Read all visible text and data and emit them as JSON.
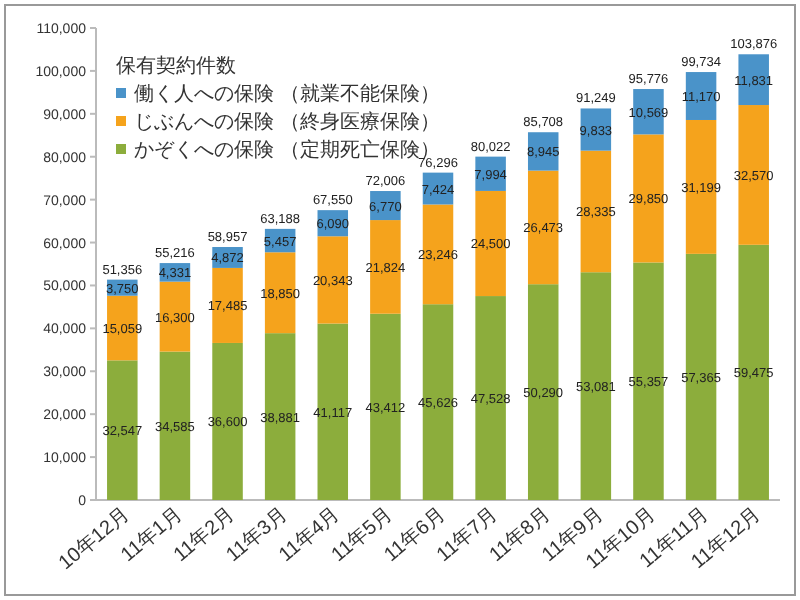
{
  "chart_data": {
    "type": "bar",
    "stacked": true,
    "legend_title": "保有契約件数",
    "legend": "top left",
    "categories": [
      "10年12月",
      "11年1月",
      "11年2月",
      "11年3月",
      "11年4月",
      "11年5月",
      "11年6月",
      "11年7月",
      "11年8月",
      "11年9月",
      "11年10月",
      "11年11月",
      "11年12月"
    ],
    "ylim": [
      0,
      110000
    ],
    "yticks": [
      {
        "value": 0,
        "label": "0"
      },
      {
        "value": 10000,
        "label": "10,000"
      },
      {
        "value": 20000,
        "label": "20,000"
      },
      {
        "value": 30000,
        "label": "30,000"
      },
      {
        "value": 40000,
        "label": "40,000"
      },
      {
        "value": 50000,
        "label": "50,000"
      },
      {
        "value": 60000,
        "label": "60,000"
      },
      {
        "value": 70000,
        "label": "70,000"
      },
      {
        "value": 80000,
        "label": "80,000"
      },
      {
        "value": 90000,
        "label": "90,000"
      },
      {
        "value": 100000,
        "label": "100,000"
      },
      {
        "value": 110000,
        "label": "110,000"
      }
    ],
    "grid": false,
    "series": [
      {
        "name": "かぞくへの保険 （定期死亡保険）",
        "color": "#8cad3c",
        "values": [
          32547,
          34585,
          36600,
          38881,
          41117,
          43412,
          45626,
          47528,
          50290,
          53081,
          55357,
          57365,
          59475
        ],
        "value_labels": [
          "32,547",
          "34,585",
          "36,600",
          "38,881",
          "41,117",
          "43,412",
          "45,626",
          "47,528",
          "50,290",
          "53,081",
          "55,357",
          "57,365",
          "59,475"
        ]
      },
      {
        "name": "じぶんへの保険 （終身医療保険）",
        "color": "#f5a31c",
        "values": [
          15059,
          16300,
          17485,
          18850,
          20343,
          21824,
          23246,
          24500,
          26473,
          28335,
          29850,
          31199,
          32570
        ],
        "value_labels": [
          "15,059",
          "16,300",
          "17,485",
          "18,850",
          "20,343",
          "21,824",
          "23,246",
          "24,500",
          "26,473",
          "28,335",
          "29,850",
          "31,199",
          "32,570"
        ]
      },
      {
        "name": "働く人への保険 （就業不能保険）",
        "color": "#4a93c9",
        "values": [
          3750,
          4331,
          4872,
          5457,
          6090,
          6770,
          7424,
          7994,
          8945,
          9833,
          10569,
          11170,
          11831
        ],
        "value_labels": [
          "3,750",
          "4,331",
          "4,872",
          "5,457",
          "6,090",
          "6,770",
          "7,424",
          "7,994",
          "8,945",
          "9,833",
          "10,569",
          "11,170",
          "11,831"
        ]
      }
    ],
    "totals": [
      "51,356",
      "55,216",
      "58,957",
      "63,188",
      "67,550",
      "72,006",
      "76,296",
      "80,022",
      "85,708",
      "91,249",
      "95,776",
      "99,734",
      "103,876"
    ]
  }
}
